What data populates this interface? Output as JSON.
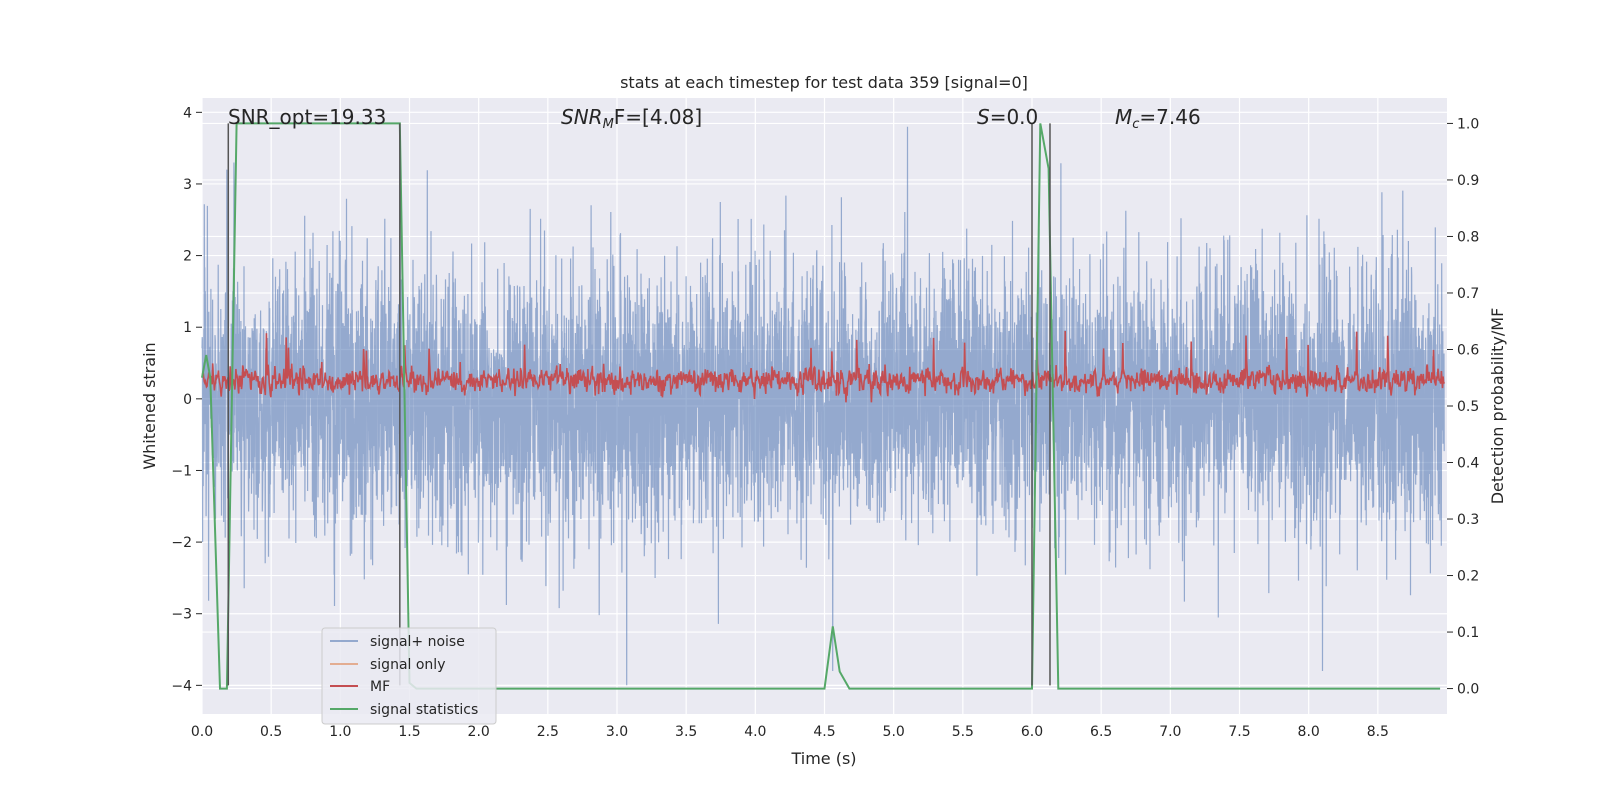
{
  "chart_data": {
    "type": "line",
    "title": "stats at each timestep for test data 359 [signal=0]",
    "xlabel": "Time (s)",
    "ylabel": "Whitened strain",
    "y2label": "Detection probability/MF",
    "xlim": [
      0,
      9
    ],
    "ylim": [
      -4.4,
      4.2
    ],
    "y2lim": [
      -0.045,
      1.045
    ],
    "x_ticks": [
      0.0,
      0.5,
      1.0,
      1.5,
      2.0,
      2.5,
      3.0,
      3.5,
      4.0,
      4.5,
      5.0,
      5.5,
      6.0,
      6.5,
      7.0,
      7.5,
      8.0,
      8.5
    ],
    "x_tick_labels": [
      "0.0",
      "0.5",
      "1.0",
      "1.5",
      "2.0",
      "2.5",
      "3.0",
      "3.5",
      "4.0",
      "4.5",
      "5.0",
      "5.5",
      "6.0",
      "6.5",
      "7.0",
      "7.5",
      "8.0",
      "8.5"
    ],
    "y_ticks": [
      -4,
      -3,
      -2,
      -1,
      0,
      1,
      2,
      3,
      4
    ],
    "y_tick_labels": [
      "−4",
      "−3",
      "−2",
      "−1",
      "0",
      "1",
      "2",
      "3",
      "4"
    ],
    "y2_ticks": [
      0.0,
      0.1,
      0.2,
      0.3,
      0.4,
      0.5,
      0.6,
      0.7,
      0.8,
      0.9,
      1.0
    ],
    "y2_tick_labels": [
      "0.0",
      "0.1",
      "0.2",
      "0.3",
      "0.4",
      "0.5",
      "0.6",
      "0.7",
      "0.8",
      "0.9",
      "1.0"
    ],
    "grid": true,
    "legend_position": "lower-left",
    "annotations": {
      "snr_opt": "SNR_opt=19.33",
      "snr_mf_name": "SNR",
      "snr_mf_sub": "M",
      "snr_mf_rest": "F=[4.08]",
      "s_name": "S",
      "s_rest": "=0.0",
      "mc_name": "M",
      "mc_sub": "c",
      "mc_rest": "=7.46"
    },
    "vertical_lines_x": [
      0.19,
      1.43,
      6.0,
      6.13
    ],
    "series": [
      {
        "name": "signal+ noise",
        "color": "#4c72b0",
        "axis": "left",
        "noise_model": {
          "std": 0.93,
          "peak_max": 3.8,
          "peak_min": -4.0,
          "samples": 6000
        },
        "notable_peaks": [
          {
            "x": 0.18,
            "y": 3.2
          },
          {
            "x": 0.23,
            "y": 3.3
          },
          {
            "x": 3.07,
            "y": -4.0
          },
          {
            "x": 4.56,
            "y": -3.8
          },
          {
            "x": 5.1,
            "y": 3.8
          },
          {
            "x": 8.1,
            "y": -3.8
          }
        ]
      },
      {
        "name": "signal only",
        "color": "#dd8452",
        "axis": "left",
        "values": []
      },
      {
        "name": "MF",
        "color": "#c44e52",
        "axis": "left",
        "band_model": {
          "center": 0.25,
          "half_width": 0.2,
          "peak_max": 0.95,
          "peak_min": -0.05
        }
      },
      {
        "name": "signal statistics",
        "color": "#55a868",
        "axis": "right",
        "x": [
          0.0,
          0.03,
          0.06,
          0.13,
          0.18,
          0.25,
          1.43,
          1.5,
          1.55,
          4.5,
          4.56,
          4.61,
          4.68,
          6.0,
          6.06,
          6.12,
          6.19,
          8.95
        ],
        "y": [
          0.55,
          0.59,
          0.55,
          0.0,
          0.0,
          1.0,
          1.0,
          0.01,
          0.0,
          0.0,
          0.11,
          0.03,
          0.0,
          0.0,
          1.0,
          0.92,
          0.0,
          0.0
        ]
      }
    ]
  }
}
